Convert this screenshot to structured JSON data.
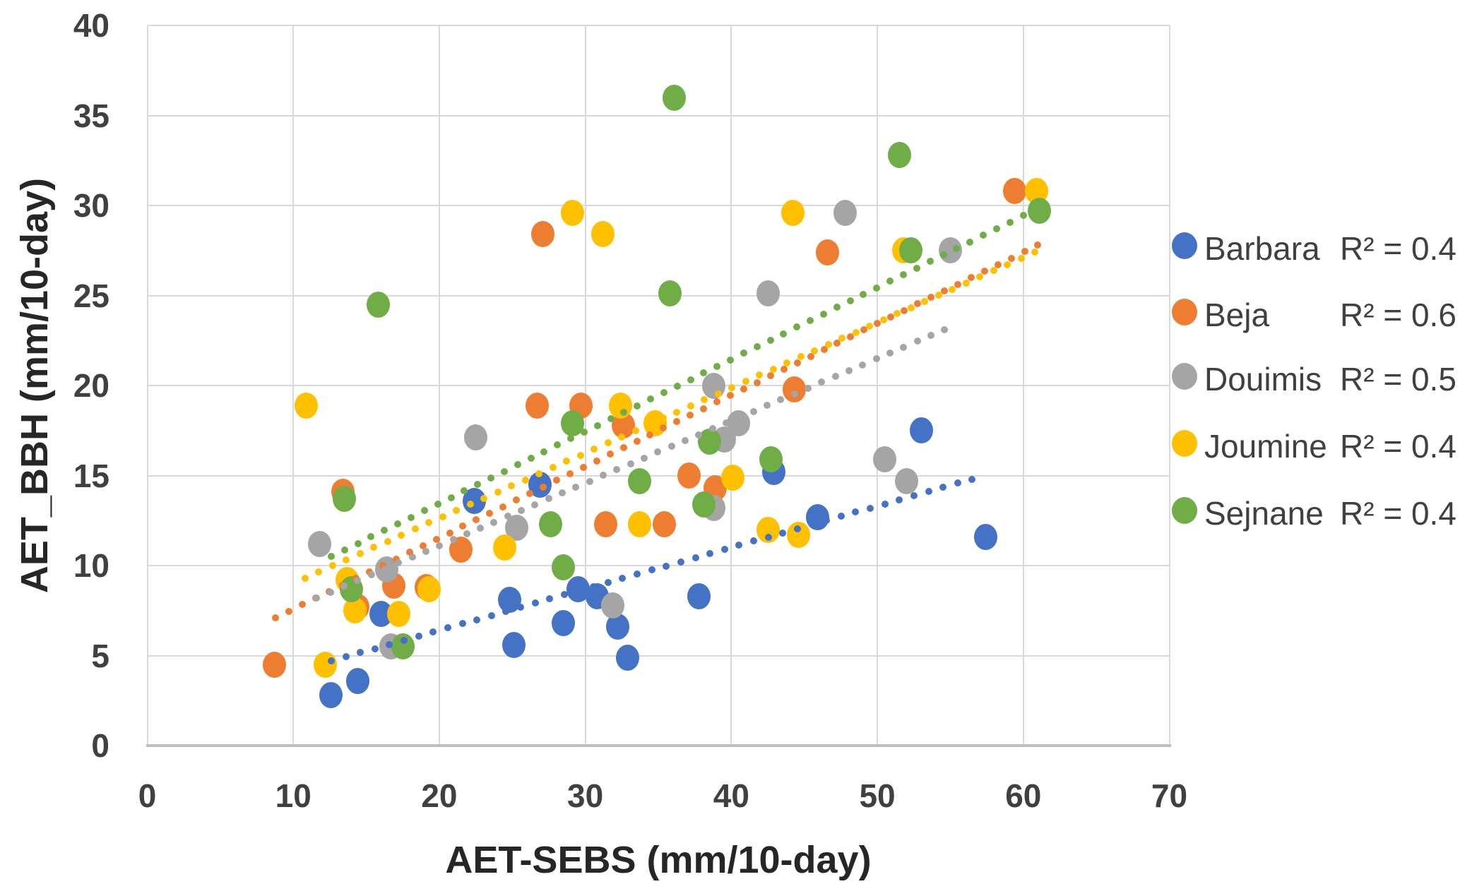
{
  "chart_data": {
    "type": "scatter",
    "title": "",
    "xlabel": "AET-SEBS (mm/10-day)",
    "ylabel": "AET_BBH (mm/10-day)",
    "xlim": [
      0,
      70
    ],
    "ylim": [
      0,
      40
    ],
    "x_ticks": [
      0,
      10,
      20,
      30,
      40,
      50,
      60,
      70
    ],
    "y_ticks": [
      0,
      5,
      10,
      15,
      20,
      25,
      30,
      35,
      40
    ],
    "grid": true,
    "legend_position": "right",
    "gridline_color": "#d9d9d9",
    "axis_line_color": "#bfbfbf",
    "tick_label_color": "#404040",
    "axis_title_color": "#262626",
    "series": [
      {
        "name": "Barbara",
        "r2_label": "R² = 0.4",
        "color": "#4472C4",
        "points": [
          [
            12.6,
            2.8
          ],
          [
            14.4,
            3.6
          ],
          [
            16.0,
            7.3
          ],
          [
            22.4,
            13.6
          ],
          [
            24.8,
            8.1
          ],
          [
            25.1,
            5.6
          ],
          [
            26.9,
            14.5
          ],
          [
            28.5,
            6.8
          ],
          [
            29.5,
            8.7
          ],
          [
            30.8,
            8.3
          ],
          [
            32.2,
            6.6
          ],
          [
            32.9,
            4.9
          ],
          [
            37.8,
            8.3
          ],
          [
            42.9,
            15.2
          ],
          [
            45.9,
            12.7
          ],
          [
            53.0,
            17.5
          ],
          [
            57.4,
            11.6
          ]
        ],
        "trendline": {
          "start": [
            12.6,
            4.7
          ],
          "end": [
            56.5,
            14.8
          ]
        }
      },
      {
        "name": "Beja",
        "r2_label": "R² = 0.6",
        "color": "#ED7D31",
        "points": [
          [
            8.7,
            4.5
          ],
          [
            13.4,
            14.1
          ],
          [
            14.4,
            7.7
          ],
          [
            16.9,
            8.9
          ],
          [
            19.1,
            8.8
          ],
          [
            21.5,
            10.9
          ],
          [
            26.7,
            18.9
          ],
          [
            27.1,
            28.4
          ],
          [
            29.7,
            18.9
          ],
          [
            31.4,
            12.3
          ],
          [
            32.6,
            17.8
          ],
          [
            35.4,
            12.3
          ],
          [
            37.1,
            15.0
          ],
          [
            38.9,
            14.3
          ],
          [
            44.3,
            19.8
          ],
          [
            46.6,
            27.4
          ],
          [
            59.4,
            30.8
          ]
        ],
        "trendline": {
          "start": [
            8.8,
            7.1
          ],
          "end": [
            61.0,
            27.8
          ]
        }
      },
      {
        "name": "Douimis",
        "r2_label": "R² = 0.5",
        "color": "#A5A5A5",
        "points": [
          [
            11.8,
            11.2
          ],
          [
            16.4,
            9.8
          ],
          [
            16.7,
            5.5
          ],
          [
            22.5,
            17.1
          ],
          [
            25.3,
            12.1
          ],
          [
            31.9,
            7.8
          ],
          [
            38.8,
            20.0
          ],
          [
            38.8,
            13.2
          ],
          [
            39.5,
            17.0
          ],
          [
            40.5,
            17.9
          ],
          [
            42.5,
            25.1
          ],
          [
            47.8,
            29.6
          ],
          [
            50.5,
            15.9
          ],
          [
            52.0,
            14.7
          ],
          [
            55.0,
            27.5
          ]
        ],
        "trendline": {
          "start": [
            11.6,
            8.2
          ],
          "end": [
            54.6,
            23.1
          ]
        }
      },
      {
        "name": "Joumine",
        "r2_label": "R² = 0.4",
        "color": "#FFC000",
        "points": [
          [
            10.9,
            18.9
          ],
          [
            12.2,
            4.5
          ],
          [
            13.7,
            9.2
          ],
          [
            14.2,
            7.5
          ],
          [
            17.2,
            7.3
          ],
          [
            19.3,
            8.7
          ],
          [
            24.5,
            11.0
          ],
          [
            29.1,
            29.6
          ],
          [
            31.2,
            28.4
          ],
          [
            32.4,
            18.9
          ],
          [
            33.7,
            12.3
          ],
          [
            34.8,
            17.9
          ],
          [
            40.1,
            14.9
          ],
          [
            42.5,
            12.0
          ],
          [
            44.2,
            29.6
          ],
          [
            44.6,
            11.7
          ],
          [
            51.8,
            27.5
          ],
          [
            60.9,
            30.8
          ]
        ],
        "trendline": {
          "start": [
            10.8,
            9.3
          ],
          "end": [
            60.8,
            27.4
          ]
        }
      },
      {
        "name": "Sejnane",
        "r2_label": "R² = 0.4",
        "color": "#70AD47",
        "points": [
          [
            13.5,
            13.7
          ],
          [
            14.0,
            8.7
          ],
          [
            15.8,
            24.5
          ],
          [
            17.5,
            5.5
          ],
          [
            27.6,
            12.3
          ],
          [
            28.5,
            9.9
          ],
          [
            29.1,
            17.9
          ],
          [
            33.7,
            14.7
          ],
          [
            35.8,
            25.1
          ],
          [
            36.1,
            36.0
          ],
          [
            38.1,
            13.4
          ],
          [
            38.5,
            16.9
          ],
          [
            42.7,
            15.9
          ],
          [
            51.5,
            32.8
          ],
          [
            52.3,
            27.5
          ],
          [
            61.1,
            29.7
          ]
        ],
        "trendline": {
          "start": [
            12.6,
            10.5
          ],
          "end": [
            60.9,
            29.8
          ]
        }
      }
    ]
  }
}
